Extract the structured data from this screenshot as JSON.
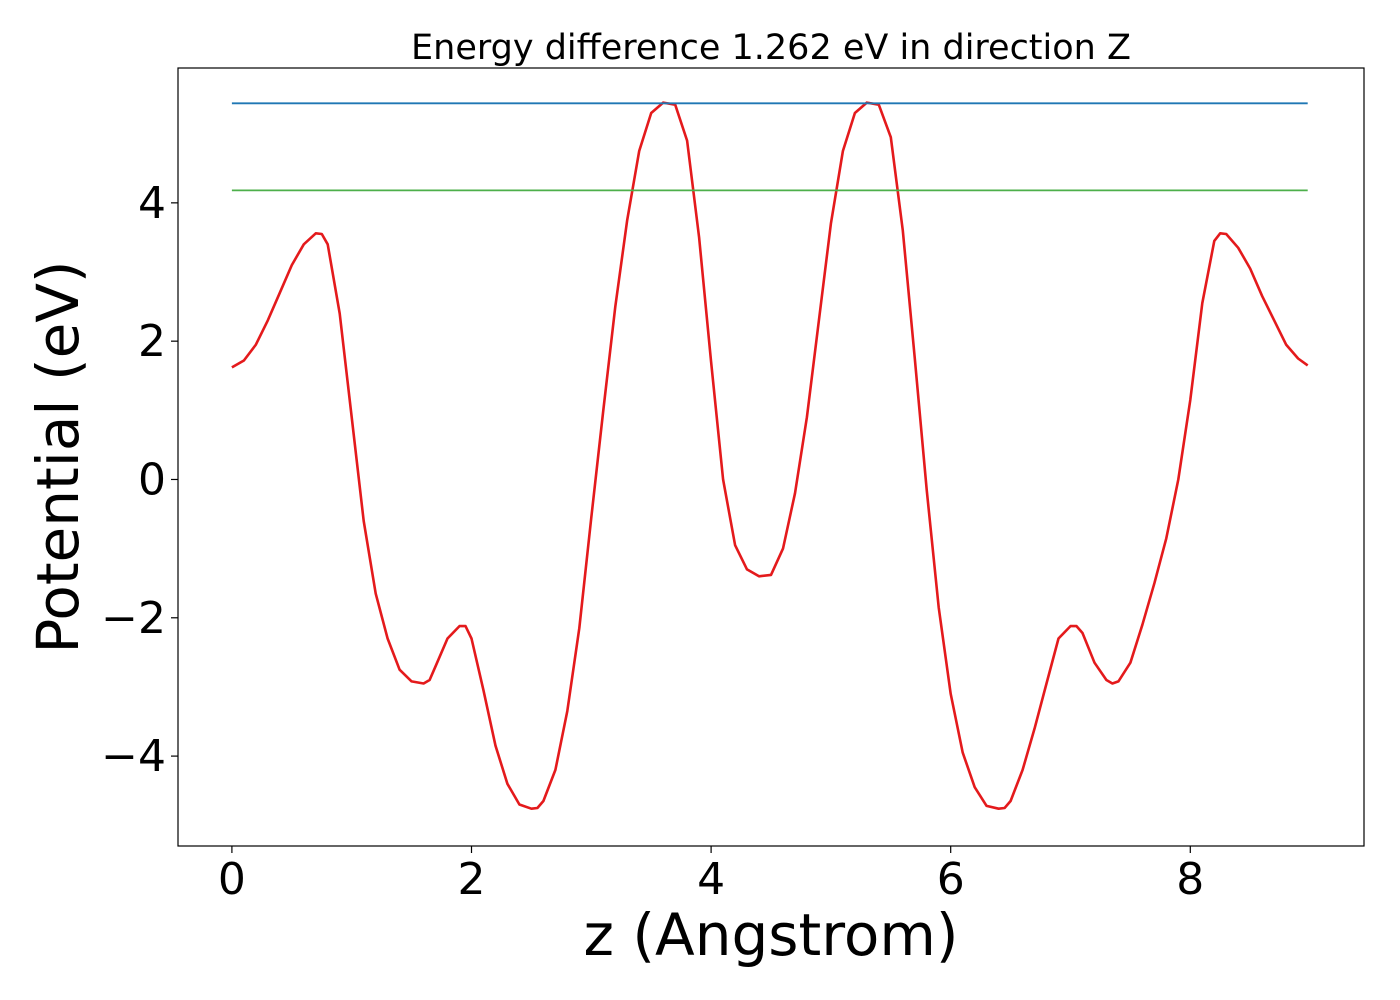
{
  "chart_data": {
    "type": "line",
    "title": "Energy difference 1.262 eV in direction Z",
    "xlabel": "z (Angstrom)",
    "ylabel": "Potential (eV)",
    "xlim": [
      -0.45,
      9.45
    ],
    "ylim": [
      -5.3,
      5.95
    ],
    "grid": false,
    "xticks": [
      0,
      2,
      4,
      6,
      8
    ],
    "xtick_labels": [
      "0",
      "2",
      "4",
      "6",
      "8"
    ],
    "yticks": [
      -4,
      -2,
      0,
      2,
      4
    ],
    "ytick_labels": [
      "−4",
      "−2",
      "0",
      "2",
      "4"
    ],
    "series": [
      {
        "color": "#e41a1c",
        "x": [
          0.0,
          0.1,
          0.2,
          0.3,
          0.4,
          0.5,
          0.6,
          0.7,
          0.75,
          0.8,
          0.9,
          1.0,
          1.1,
          1.2,
          1.3,
          1.4,
          1.5,
          1.6,
          1.65,
          1.7,
          1.8,
          1.9,
          1.95,
          2.0,
          2.1,
          2.2,
          2.3,
          2.4,
          2.5,
          2.55,
          2.6,
          2.7,
          2.8,
          2.9,
          3.0,
          3.1,
          3.2,
          3.3,
          3.4,
          3.5,
          3.6,
          3.7,
          3.8,
          3.9,
          4.0,
          4.1,
          4.2,
          4.3,
          4.4,
          4.5,
          4.6,
          4.7,
          4.8,
          4.9,
          5.0,
          5.1,
          5.2,
          5.3,
          5.4,
          5.5,
          5.6,
          5.7,
          5.8,
          5.9,
          6.0,
          6.1,
          6.2,
          6.3,
          6.4,
          6.45,
          6.5,
          6.6,
          6.7,
          6.8,
          6.9,
          7.0,
          7.05,
          7.1,
          7.2,
          7.3,
          7.35,
          7.4,
          7.5,
          7.6,
          7.7,
          7.8,
          7.9,
          8.0,
          8.1,
          8.2,
          8.25,
          8.3,
          8.4,
          8.5,
          8.6,
          8.7,
          8.8,
          8.9,
          8.98
        ],
        "values": [
          1.62,
          1.72,
          1.95,
          2.3,
          2.7,
          3.1,
          3.4,
          3.56,
          3.55,
          3.4,
          2.4,
          0.9,
          -0.6,
          -1.65,
          -2.3,
          -2.75,
          -2.92,
          -2.95,
          -2.9,
          -2.7,
          -2.3,
          -2.12,
          -2.12,
          -2.3,
          -3.05,
          -3.85,
          -4.4,
          -4.7,
          -4.76,
          -4.75,
          -4.65,
          -4.2,
          -3.35,
          -2.15,
          -0.55,
          1.0,
          2.5,
          3.75,
          4.75,
          5.3,
          5.45,
          5.42,
          4.9,
          3.5,
          1.7,
          0.0,
          -0.95,
          -1.3,
          -1.4,
          -1.38,
          -1.0,
          -0.2,
          0.9,
          2.3,
          3.7,
          4.75,
          5.3,
          5.45,
          5.42,
          4.95,
          3.6,
          1.75,
          -0.15,
          -1.85,
          -3.1,
          -3.95,
          -4.45,
          -4.72,
          -4.76,
          -4.75,
          -4.65,
          -4.2,
          -3.6,
          -2.95,
          -2.3,
          -2.12,
          -2.12,
          -2.22,
          -2.65,
          -2.9,
          -2.95,
          -2.92,
          -2.65,
          -2.1,
          -1.5,
          -0.85,
          0.0,
          1.15,
          2.55,
          3.45,
          3.56,
          3.55,
          3.35,
          3.05,
          2.65,
          2.3,
          1.95,
          1.75,
          1.65
        ]
      },
      {
        "color": "#1f77b4",
        "x": [
          0.0,
          8.98
        ],
        "values": [
          5.44,
          5.44
        ]
      },
      {
        "color": "#4daf4a",
        "x": [
          0.0,
          8.98
        ],
        "values": [
          4.18,
          4.18
        ]
      }
    ]
  }
}
